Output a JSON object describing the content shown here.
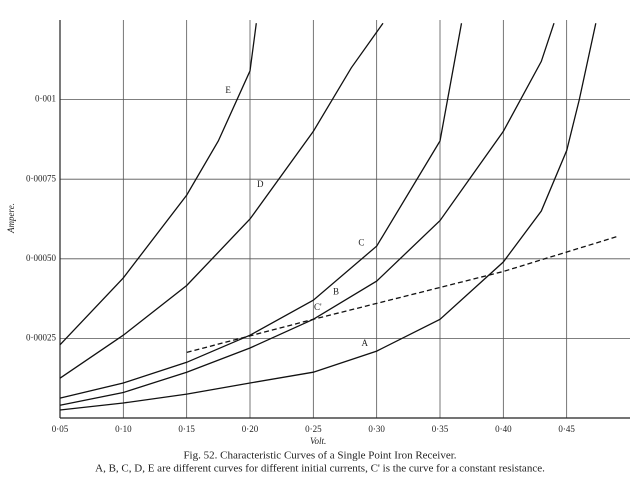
{
  "chart_data": {
    "type": "line",
    "title": "Fig. 52. Characteristic Curves of a Single Point Iron Receiver.",
    "subtitle": "A, B, C, D, E are different curves for different initial currents,  C' is the curve for a constant resistance.",
    "xlabel": "Volt.",
    "ylabel": "Ampere.",
    "xlim": [
      0.05,
      0.5
    ],
    "ylim": [
      0,
      0.00125
    ],
    "xticks": [
      {
        "value": 0.05,
        "label": "0·05"
      },
      {
        "value": 0.1,
        "label": "0·10"
      },
      {
        "value": 0.15,
        "label": "0·15"
      },
      {
        "value": 0.2,
        "label": "0·20"
      },
      {
        "value": 0.25,
        "label": "0·25"
      },
      {
        "value": 0.3,
        "label": "0·30"
      },
      {
        "value": 0.35,
        "label": "0·35"
      },
      {
        "value": 0.4,
        "label": "0·40"
      },
      {
        "value": 0.45,
        "label": "0·45"
      }
    ],
    "yticks": [
      {
        "value": 0.00025,
        "label": "0·00025"
      },
      {
        "value": 0.0005,
        "label": "0·00050"
      },
      {
        "value": 0.00075,
        "label": "0·00075"
      },
      {
        "value": 0.001,
        "label": "0·001"
      }
    ],
    "grid": true,
    "series": [
      {
        "name": "E",
        "color": "#111111",
        "x": [
          0.05,
          0.1,
          0.15,
          0.175,
          0.2,
          0.205
        ],
        "values": [
          0.00023,
          0.00044,
          0.0007,
          0.00087,
          0.00109,
          0.00124
        ]
      },
      {
        "name": "D",
        "color": "#111111",
        "x": [
          0.05,
          0.1,
          0.15,
          0.2,
          0.25,
          0.28,
          0.305
        ],
        "values": [
          0.000125,
          0.00026,
          0.000416,
          0.000625,
          0.0009,
          0.0011,
          0.00124
        ]
      },
      {
        "name": "C",
        "color": "#111111",
        "x": [
          0.05,
          0.1,
          0.15,
          0.2,
          0.25,
          0.3,
          0.35,
          0.367
        ],
        "values": [
          6.25e-05,
          0.00011,
          0.000175,
          0.00026,
          0.00037,
          0.00054,
          0.00087,
          0.00124
        ]
      },
      {
        "name": "B",
        "color": "#111111",
        "x": [
          0.05,
          0.1,
          0.15,
          0.2,
          0.25,
          0.3,
          0.35,
          0.4,
          0.43,
          0.44
        ],
        "values": [
          4e-05,
          8e-05,
          0.000144,
          0.00022,
          0.00031,
          0.00043,
          0.00062,
          0.0009,
          0.00112,
          0.00124
        ]
      },
      {
        "name": "A",
        "color": "#111111",
        "x": [
          0.05,
          0.1,
          0.15,
          0.2,
          0.25,
          0.3,
          0.35,
          0.4,
          0.43,
          0.45,
          0.46,
          0.473
        ],
        "values": [
          2.5e-05,
          4.7e-05,
          7.5e-05,
          0.00011,
          0.000144,
          0.00021,
          0.00031,
          0.00049,
          0.00065,
          0.00084,
          0.001,
          0.00124
        ]
      },
      {
        "name": "C'",
        "color": "#111111",
        "dash": true,
        "x": [
          0.15,
          0.25,
          0.3,
          0.4,
          0.49
        ],
        "values": [
          0.000206,
          0.00031,
          0.00036,
          0.00046,
          0.00057
        ]
      }
    ]
  }
}
